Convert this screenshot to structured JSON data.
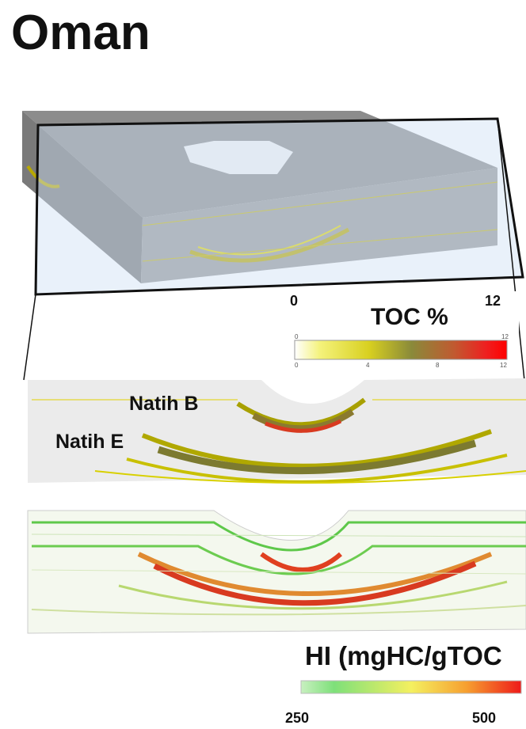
{
  "title": "Oman",
  "toc_legend": {
    "min_label": "0",
    "max_label": "12",
    "title": "TOC %",
    "scale_top_ticks": [
      "0",
      "12"
    ],
    "scale_bottom_ticks": [
      "0",
      "4",
      "8",
      "12"
    ]
  },
  "section_labels": [
    "Natih B",
    "Natih E"
  ],
  "hi_legend": {
    "title": "HI (mgHC/gTOC",
    "min_label": "250",
    "max_label": "500"
  }
}
